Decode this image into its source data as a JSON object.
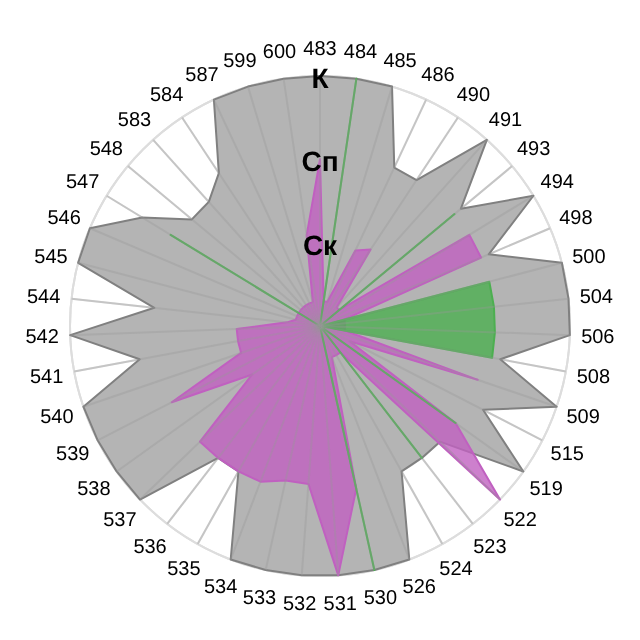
{
  "chart_data": {
    "type": "radar",
    "categories": [
      "483",
      "484",
      "485",
      "486",
      "490",
      "491",
      "493",
      "494",
      "498",
      "500",
      "504",
      "506",
      "508",
      "509",
      "515",
      "519",
      "522",
      "523",
      "524",
      "526",
      "530",
      "531",
      "532",
      "533",
      "534",
      "535",
      "536",
      "537",
      "538",
      "539",
      "540",
      "541",
      "542",
      "544",
      "545",
      "546",
      "547",
      "548",
      "583",
      "584",
      "587",
      "599",
      "600"
    ],
    "series": [
      {
        "color": "#b4b4b4",
        "values": [
          3,
          3,
          3,
          2.1,
          2.1,
          3,
          2.2,
          3,
          2.2,
          3,
          3,
          3,
          2.2,
          3,
          2.2,
          3,
          2,
          2,
          2,
          3,
          3,
          3,
          3,
          3,
          3,
          2,
          2,
          3,
          3,
          3,
          3,
          2.2,
          3,
          2,
          3,
          3,
          2.5,
          2,
          2,
          2.2,
          3,
          3,
          3
        ]
      },
      {
        "color": "#c060c0",
        "values": [
          2,
          0.3,
          0.3,
          1,
          1.1,
          0.3,
          0.3,
          2.1,
          2.1,
          0.3,
          0.3,
          0.3,
          0.3,
          2,
          0.4,
          2,
          3,
          0.4,
          0.4,
          0.4,
          2,
          3,
          1.9,
          1.9,
          2,
          2,
          2,
          2,
          1,
          2,
          1,
          1,
          1,
          0.4,
          0.3,
          0.3,
          0.3,
          0.3,
          0.3,
          0.3,
          0.3,
          0.3,
          1.1
        ]
      },
      {
        "color": "#4caf50",
        "values": [
          0,
          3,
          0,
          0,
          0,
          0,
          2.1,
          0,
          0,
          2.1,
          2.1,
          2.1,
          2.1,
          0,
          0,
          2,
          0,
          2,
          0,
          0,
          3,
          0,
          0,
          0,
          0,
          0,
          0,
          0,
          0,
          0,
          0,
          0,
          0,
          0,
          0,
          0,
          2.1,
          0,
          0,
          0,
          0,
          0,
          0
        ]
      }
    ],
    "ylim": [
      0,
      3
    ],
    "yticks": [
      {
        "value": 1,
        "label": "Ск"
      },
      {
        "value": 2,
        "label": "Сп"
      },
      {
        "value": 3,
        "label": "К"
      }
    ],
    "grid": true
  }
}
